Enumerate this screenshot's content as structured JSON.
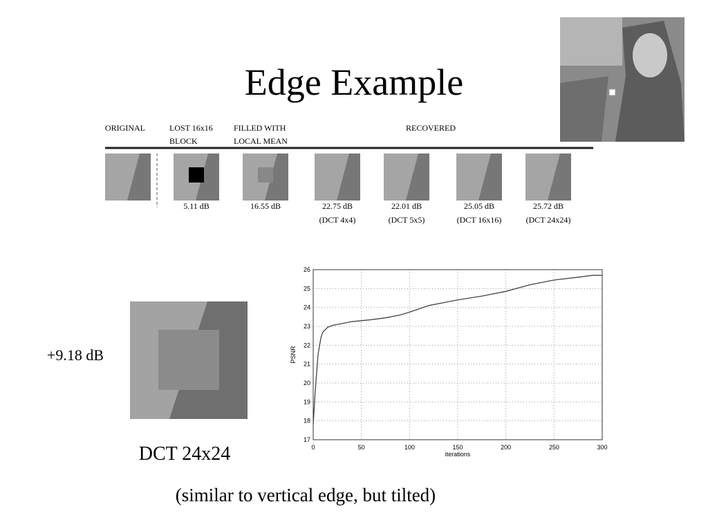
{
  "slide": {
    "title": "Edge Example",
    "headers": [
      [
        "ORIGINAL"
      ],
      [
        "LOST 16x16",
        "BLOCK"
      ],
      [
        "FILLED WITH",
        "LOCAL MEAN"
      ],
      [
        "RECOVERED"
      ]
    ],
    "captions": [
      [
        "5.11 dB"
      ],
      [
        "16.55 dB"
      ],
      [
        "22.75 dB",
        "(DCT 4x4)"
      ],
      [
        "22.01 dB",
        "(DCT 5x5)"
      ],
      [
        "25.05 dB",
        "(DCT 16x16)"
      ],
      [
        "25.72 dB",
        "(DCT 24x24)"
      ]
    ],
    "gain": "+9.18 dB",
    "zoom_caption": "DCT 24x24",
    "note": "(similar to vertical edge, but tilted)"
  },
  "chart_data": {
    "type": "line",
    "xlabel": "iterations",
    "ylabel": "PSNR",
    "x": [
      0,
      2,
      5,
      8,
      10,
      15,
      20,
      30,
      40,
      50,
      60,
      75,
      90,
      100,
      120,
      140,
      150,
      175,
      200,
      225,
      250,
      275,
      290,
      300
    ],
    "values": [
      17.8,
      19.5,
      21.5,
      22.4,
      22.7,
      22.95,
      23.05,
      23.15,
      23.25,
      23.3,
      23.35,
      23.45,
      23.6,
      23.75,
      24.1,
      24.3,
      24.4,
      24.6,
      24.85,
      25.2,
      25.45,
      25.6,
      25.7,
      25.7
    ],
    "color": "#444",
    "xlim": [
      0,
      300
    ],
    "ylim": [
      17,
      26
    ],
    "xticks": [
      0,
      50,
      100,
      150,
      200,
      250,
      300
    ],
    "yticks": [
      17,
      18,
      19,
      20,
      21,
      22,
      23,
      24,
      25,
      26
    ],
    "grid": true
  }
}
